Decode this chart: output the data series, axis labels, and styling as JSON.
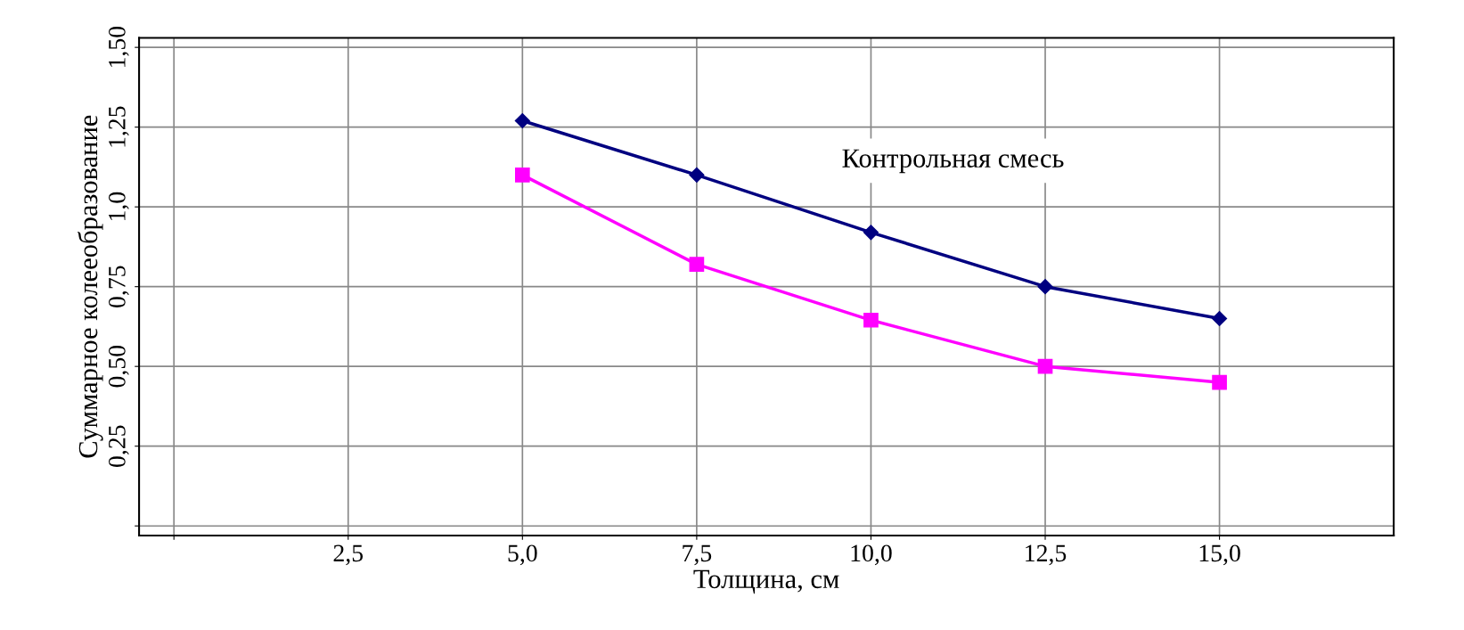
{
  "chart_data": {
    "type": "line",
    "xlabel": "Толщина, см",
    "ylabel": "Суммарное колееобразование",
    "x": [
      5.0,
      7.5,
      10.0,
      12.5,
      15.0
    ],
    "series": [
      {
        "color": "#000080",
        "marker": "diamond",
        "values": [
          1.27,
          1.1,
          0.92,
          0.75,
          0.65
        ]
      },
      {
        "color": "#ff00ff",
        "marker": "square",
        "values": [
          1.1,
          0.82,
          0.645,
          0.5,
          0.45
        ]
      }
    ],
    "annotations": [
      "Контрольная смесь"
    ],
    "xlim": [
      -0.5,
      17.5
    ],
    "ylim": [
      -0.03,
      1.53
    ],
    "xticks": [
      {
        "value": 0,
        "label": null
      },
      {
        "value": 2.5,
        "label": "2,5"
      },
      {
        "value": 5,
        "label": "5,0"
      },
      {
        "value": 7.5,
        "label": "7,5"
      },
      {
        "value": 10,
        "label": "10,0"
      },
      {
        "value": 12.5,
        "label": "12,5"
      },
      {
        "value": 15,
        "label": "15,0"
      }
    ],
    "yticks": [
      {
        "value": 0,
        "label": null
      },
      {
        "value": 0.25,
        "label": "0,25"
      },
      {
        "value": 0.5,
        "label": "0,50"
      },
      {
        "value": 0.75,
        "label": "0,75"
      },
      {
        "value": 1.0,
        "label": "1,0"
      },
      {
        "value": 1.25,
        "label": "1,25"
      },
      {
        "value": 1.5,
        "label": "1,50"
      }
    ],
    "grid": true,
    "line_style": "solid"
  }
}
